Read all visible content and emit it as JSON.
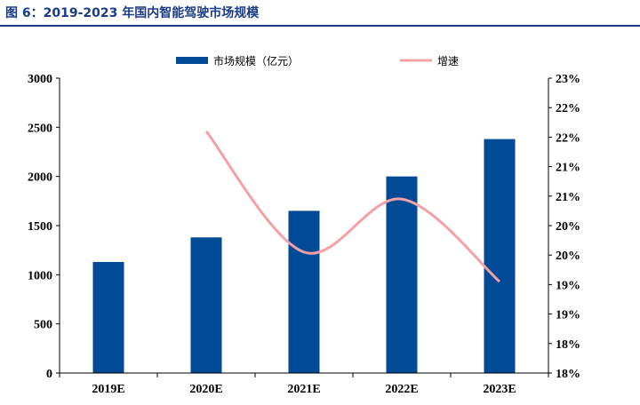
{
  "header": {
    "figure_label": "图 6：",
    "title": "2019-2023 年国内智能驾驶市场规模"
  },
  "colors": {
    "title": "#1a3c8a",
    "bar": "#004a96",
    "line": "#f4a0a4",
    "axis": "#000000"
  },
  "chart_data": {
    "type": "bar",
    "title": "2019-2023 年国内智能驾驶市场规模",
    "categories": [
      "2019E",
      "2020E",
      "2021E",
      "2022E",
      "2023E"
    ],
    "series": [
      {
        "name": "市场规模（亿元）",
        "type": "bar",
        "axis": "left",
        "values": [
          1130,
          1380,
          1650,
          2000,
          2380
        ]
      },
      {
        "name": "增速",
        "type": "line",
        "axis": "right",
        "values": [
          null,
          0.221,
          0.2005,
          0.2095,
          0.1955
        ]
      }
    ],
    "left_axis": {
      "ylim": [
        0,
        3000
      ],
      "ticks": [
        0,
        500,
        1000,
        1500,
        2000,
        2500,
        3000
      ],
      "tick_labels": [
        "0",
        "500",
        "1000",
        "1500",
        "2000",
        "2500",
        "3000"
      ]
    },
    "right_axis": {
      "ylim": [
        0.18,
        0.23
      ],
      "ticks": [
        0.18,
        0.185,
        0.19,
        0.195,
        0.2,
        0.205,
        0.21,
        0.215,
        0.22,
        0.225,
        0.23
      ],
      "tick_labels": [
        "18%",
        "18%",
        "19%",
        "19%",
        "20%",
        "20%",
        "21%",
        "21%",
        "22%",
        "22%",
        "23%"
      ]
    },
    "legend": {
      "position": "top",
      "entries": [
        "市场规模（亿元）",
        "增速"
      ]
    },
    "grid": false
  }
}
